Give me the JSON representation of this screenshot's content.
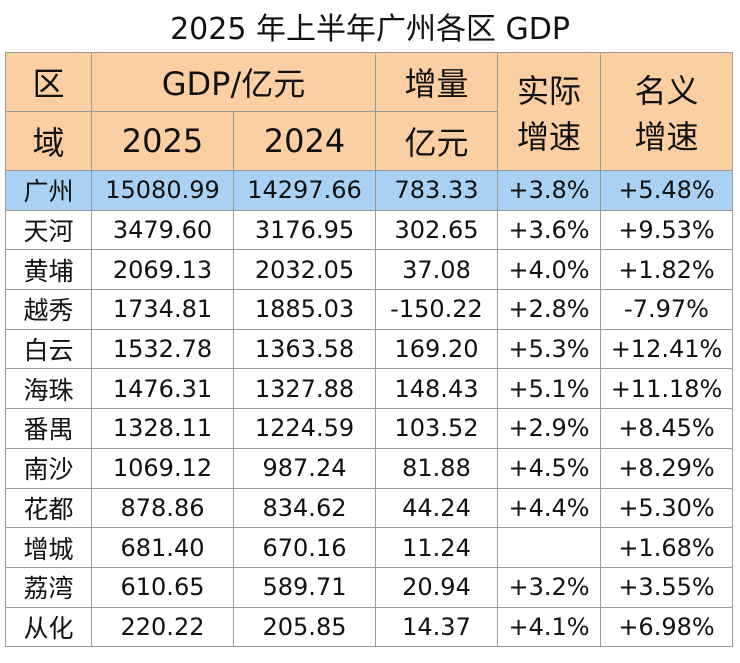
{
  "title": "2025 年上半年广州各区 GDP",
  "header": {
    "region1": "区",
    "region2": "域",
    "gdp": "GDP/亿元",
    "y2025": "2025",
    "y2024": "2024",
    "inc1": "增量",
    "inc2": "亿元",
    "real1": "实际",
    "real2": "增速",
    "nom1": "名义",
    "nom2": "增速"
  },
  "colors": {
    "header_bg": "#fccfa3",
    "total_row_bg": "#a9d1f4"
  },
  "rows": [
    [
      "广州",
      "15080.99",
      "14297.66",
      "783.33",
      "+3.8%",
      "+5.48%"
    ],
    [
      "天河",
      "3479.60",
      "3176.95",
      "302.65",
      "+3.6%",
      "+9.53%"
    ],
    [
      "黄埔",
      "2069.13",
      "2032.05",
      "37.08",
      "+4.0%",
      "+1.82%"
    ],
    [
      "越秀",
      "1734.81",
      "1885.03",
      "-150.22",
      "+2.8%",
      "-7.97%"
    ],
    [
      "白云",
      "1532.78",
      "1363.58",
      "169.20",
      "+5.3%",
      "+12.41%"
    ],
    [
      "海珠",
      "1476.31",
      "1327.88",
      "148.43",
      "+5.1%",
      "+11.18%"
    ],
    [
      "番禺",
      "1328.11",
      "1224.59",
      "103.52",
      "+2.9%",
      "+8.45%"
    ],
    [
      "南沙",
      "1069.12",
      "987.24",
      "81.88",
      "+4.5%",
      "+8.29%"
    ],
    [
      "花都",
      "878.86",
      "834.62",
      "44.24",
      "+4.4%",
      "+5.30%"
    ],
    [
      "增城",
      "681.40",
      "670.16",
      "11.24",
      "",
      "+1.68%"
    ],
    [
      "荔湾",
      "610.65",
      "589.71",
      "20.94",
      "+3.2%",
      "+3.55%"
    ],
    [
      "从化",
      "220.22",
      "205.85",
      "14.37",
      "+4.1%",
      "+6.98%"
    ]
  ]
}
